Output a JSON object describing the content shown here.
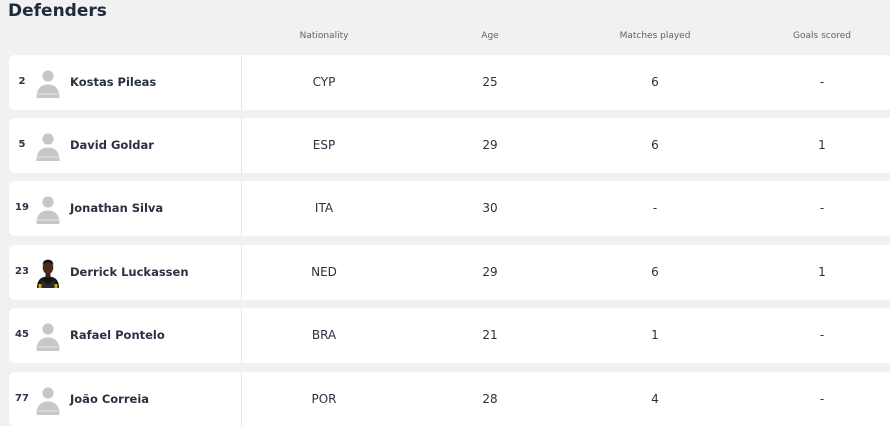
{
  "section": {
    "title": "Defenders"
  },
  "columns": {
    "nationality": "Nationality",
    "age": "Age",
    "matches_played": "Matches played",
    "goals_scored": "Goals scored"
  },
  "players": [
    {
      "number": "2",
      "name": "Kostas Pileas",
      "nationality": "CYP",
      "age": "25",
      "matches": "6",
      "goals": "-",
      "avatar": "placeholder-avatar-icon"
    },
    {
      "number": "5",
      "name": "David Goldar",
      "nationality": "ESP",
      "age": "29",
      "matches": "6",
      "goals": "1",
      "avatar": "placeholder-avatar-icon"
    },
    {
      "number": "19",
      "name": "Jonathan Silva",
      "nationality": "ITA",
      "age": "30",
      "matches": "-",
      "goals": "-",
      "avatar": "placeholder-avatar-icon"
    },
    {
      "number": "23",
      "name": "Derrick Luckassen",
      "nationality": "NED",
      "age": "29",
      "matches": "6",
      "goals": "1",
      "avatar": "player-photo"
    },
    {
      "number": "45",
      "name": "Rafael Pontelo",
      "nationality": "BRA",
      "age": "21",
      "matches": "1",
      "goals": "-",
      "avatar": "placeholder-avatar-icon"
    },
    {
      "number": "77",
      "name": "João Correia",
      "nationality": "POR",
      "age": "28",
      "matches": "4",
      "goals": "-",
      "avatar": "placeholder-avatar-icon"
    }
  ],
  "colors": {
    "page_background": "#f1f1f1",
    "row_background": "#ffffff",
    "text": "#2a3142",
    "header_text": "#5c6272",
    "placeholder_avatar": "#c7c7c7"
  }
}
